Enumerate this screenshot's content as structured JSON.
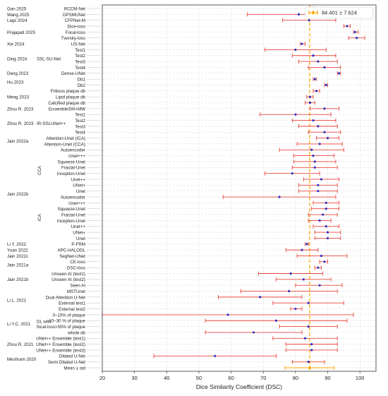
{
  "chart_data": {
    "type": "forest",
    "xlabel": "Dice Similarity Coefficient (DSC)",
    "xlim": [
      20,
      105
    ],
    "xticks": [
      20,
      30,
      40,
      50,
      60,
      70,
      80,
      90,
      100
    ],
    "grid": true,
    "legend": {
      "label": "84.401 ± 7.624",
      "position": "top-right"
    },
    "reference_line": {
      "value": 84.401,
      "color": "#ffa500",
      "style": "dashed"
    },
    "colors": {
      "error_bar": "#e8453c",
      "point": "#3030c0",
      "mean_marker": "#ffa500"
    },
    "rows": [
      {
        "label": "RCCM-Net",
        "mean": 85.0,
        "lo": 84.5,
        "hi": 85.5
      },
      {
        "label": "DPSMUNet",
        "mean": 81.0,
        "lo": 65.0,
        "hi": 97.0
      },
      {
        "label": "CFPNet-M",
        "mean": 84.2,
        "lo": 76.0,
        "hi": 92.5
      },
      {
        "label": "Dice-loss",
        "mean": 96.0,
        "lo": 95.0,
        "hi": 97.0
      },
      {
        "label": "Focal-loss",
        "mean": 98.5,
        "lo": 98.0,
        "hi": 99.5
      },
      {
        "label": "Tversky-loss",
        "mean": 99.0,
        "lo": 96.5,
        "hi": 101.5
      },
      {
        "label": "US-Net",
        "mean": 82.0,
        "lo": 81.5,
        "hi": 83.0
      },
      {
        "label": "Test1",
        "mean": 80.0,
        "lo": 70.5,
        "hi": 89.5
      },
      {
        "label": "Test2",
        "mean": 85.5,
        "lo": 79.0,
        "hi": 92.5
      },
      {
        "label": "Test3",
        "mean": 87.0,
        "lo": 81.0,
        "hi": 93.0
      },
      {
        "label": "Test4",
        "mean": 89.0,
        "lo": 84.0,
        "hi": 94.0
      },
      {
        "label": "Dense-UNet",
        "mean": 93.5,
        "lo": 93.0,
        "hi": 94.0
      },
      {
        "label": "Db1",
        "mean": 86.0,
        "lo": 85.5,
        "hi": 86.5
      },
      {
        "label": "Db2",
        "mean": 89.5,
        "lo": 89.0,
        "hi": 90.0
      },
      {
        "label": "Fribous plaque db",
        "mean": 86.5,
        "lo": 85.5,
        "hi": 87.5
      },
      {
        "label": "Lipid plaque db",
        "mean": 84.5,
        "lo": 83.5,
        "hi": 85.5
      },
      {
        "label": "Calcified plaque db",
        "mean": 84.5,
        "lo": 83.0,
        "hi": 86.0
      },
      {
        "label": "EnsembleSW+MW",
        "mean": 89.0,
        "lo": 84.5,
        "hi": 93.5
      },
      {
        "label": "Test1",
        "mean": 80.0,
        "lo": 69.0,
        "hi": 91.0
      },
      {
        "label": "Test2",
        "mean": 85.5,
        "lo": 79.0,
        "hi": 92.5
      },
      {
        "label": "Test3",
        "mean": 87.0,
        "lo": 81.0,
        "hi": 93.0
      },
      {
        "label": "Test4",
        "mean": 89.0,
        "lo": 84.0,
        "hi": 94.0
      },
      {
        "label": "Attention-Unet (ICA)",
        "mean": 90.0,
        "lo": 86.5,
        "hi": 93.5
      },
      {
        "label": "Attention-Unet (CCA)",
        "mean": 87.5,
        "lo": 80.5,
        "hi": 94.5
      },
      {
        "label": "Autoencoder",
        "mean": 85.0,
        "lo": 75.0,
        "hi": 95.0
      },
      {
        "label": "Unet+++",
        "mean": 85.5,
        "lo": 79.5,
        "hi": 92.0
      },
      {
        "label": "Squeeze-Unet",
        "mean": 86.0,
        "lo": 79.5,
        "hi": 92.5
      },
      {
        "label": "Fractal-Unet",
        "mean": 86.0,
        "lo": 79.0,
        "hi": 93.0
      },
      {
        "label": "Inception-Unet",
        "mean": 79.0,
        "lo": 70.5,
        "hi": 87.5
      },
      {
        "label": "Unet++",
        "mean": 88.0,
        "lo": 82.5,
        "hi": 93.5
      },
      {
        "label": "UNet+",
        "mean": 87.0,
        "lo": 81.0,
        "hi": 93.0
      },
      {
        "label": "Unet",
        "mean": 87.0,
        "lo": 81.0,
        "hi": 93.0
      },
      {
        "label": "Autoencoder",
        "mean": 75.0,
        "lo": 57.5,
        "hi": 92.5
      },
      {
        "label": "Unet+++",
        "mean": 89.5,
        "lo": 85.5,
        "hi": 93.5
      },
      {
        "label": "Squeeze-Unet",
        "mean": 89.5,
        "lo": 85.0,
        "hi": 93.5
      },
      {
        "label": "Fractal-Unet",
        "mean": 88.5,
        "lo": 84.0,
        "hi": 93.0
      },
      {
        "label": "Inception-Unet",
        "mean": 87.5,
        "lo": 84.0,
        "hi": 91.0
      },
      {
        "label": "Unet++",
        "mean": 89.5,
        "lo": 85.5,
        "hi": 93.5
      },
      {
        "label": "UNet+",
        "mean": 90.0,
        "lo": 86.0,
        "hi": 94.0
      },
      {
        "label": "Unet",
        "mean": 90.0,
        "lo": 86.0,
        "hi": 94.0
      },
      {
        "label": "P-FRM",
        "mean": 83.5,
        "lo": 83.0,
        "hi": 84.0
      },
      {
        "label": "APC-HALODL",
        "mean": 82.0,
        "lo": 77.0,
        "hi": 87.0
      },
      {
        "label": "SegNet-UNet",
        "mean": 88.0,
        "lo": 80.5,
        "hi": 96.0
      },
      {
        "label": "CE-loss",
        "mean": 89.0,
        "lo": 87.5,
        "hi": 90.0
      },
      {
        "label": "DSC-loss",
        "mean": 87.0,
        "lo": 86.0,
        "hi": 88.0
      },
      {
        "label": "Unseen AI (test1)",
        "mean": 78.5,
        "lo": 68.5,
        "hi": 88.5
      },
      {
        "label": "Unseen AI (test2)",
        "mean": 82.5,
        "lo": 74.0,
        "hi": 91.0
      },
      {
        "label": "Seen AI",
        "mean": 87.5,
        "lo": 80.0,
        "hi": 94.5
      },
      {
        "label": "MSTUnet",
        "mean": 78.0,
        "lo": 63.0,
        "hi": 93.0
      },
      {
        "label": "Dual Attention U-Net",
        "mean": 69.0,
        "lo": 56.0,
        "hi": 82.0
      },
      {
        "label": "External test1",
        "mean": 84.0,
        "lo": 73.0,
        "hi": 95.0
      },
      {
        "label": "External test2",
        "mean": 80.0,
        "lo": 78.5,
        "hi": 82.0
      },
      {
        "label": "0–10% of plaque",
        "mean": 59.0,
        "lo": 20.0,
        "hi": 98.0
      },
      {
        "label": "10–30 % of plaque",
        "mean": 74.0,
        "lo": 52.0,
        "hi": 96.0
      },
      {
        "label": ">30% of plaque",
        "mean": 84.0,
        "lo": 75.0,
        "hi": 93.0
      },
      {
        "label": "whole db",
        "mean": 67.0,
        "lo": 52.0,
        "hi": 82.0
      },
      {
        "label": "UNet++ Ensemble (test1)",
        "mean": 83.0,
        "lo": 73.0,
        "hi": 93.0
      },
      {
        "label": "UNet++ Ensemble (test2)",
        "mean": 85.0,
        "lo": 77.0,
        "hi": 93.0
      },
      {
        "label": "UNet++ Ensemble (test3)",
        "mean": 85.0,
        "lo": 77.0,
        "hi": 93.0
      },
      {
        "label": "Dilated U-Net",
        "mean": 55.0,
        "lo": 36.0,
        "hi": 74.0
      },
      {
        "label": "Semi Dilated U-Net",
        "mean": 84.0,
        "lo": 79.0,
        "hi": 89.0
      },
      {
        "label": "Mean ± std",
        "mean": 84.401,
        "lo": 76.777,
        "hi": 92.025,
        "summary": true
      }
    ],
    "groups": [
      {
        "label": "Gan 2025",
        "start": 0,
        "end": 0,
        "row_offset": 0
      },
      {
        "label": "Wang 2025",
        "start": 1,
        "end": 1,
        "row_offset": 0
      },
      {
        "label": "Liapi 2024",
        "start": 2,
        "end": 2,
        "row_offset": 0
      },
      {
        "label": "Prajapati 2025",
        "start": 3,
        "end": 5
      },
      {
        "label": "Xie 2024",
        "start": 6,
        "end": 6
      },
      {
        "label": "Ding 2024",
        "start": 7,
        "end": 10
      },
      {
        "label": "Deng 2023",
        "start": 11,
        "end": 11
      },
      {
        "label": "Hu 2023",
        "start": 12,
        "end": 13
      },
      {
        "label": "Meng 2023",
        "start": 14,
        "end": 16
      },
      {
        "label": "Zhou R. 2023",
        "start": 17,
        "end": 17
      },
      {
        "label": "Zhou R. 2023",
        "start": 18,
        "end": 21
      },
      {
        "label": "Jain 2022a",
        "start": 22,
        "end": 23
      },
      {
        "label": "Jain 2022b",
        "start": 24,
        "end": 39
      },
      {
        "label": "Li Y. 2022",
        "start": 40,
        "end": 40
      },
      {
        "label": "Yuan 2022",
        "start": 41,
        "end": 41
      },
      {
        "label": "Jain 2022c",
        "start": 42,
        "end": 42
      },
      {
        "label": "Jain 2021a",
        "start": 43,
        "end": 44
      },
      {
        "label": "Jain 2021b",
        "start": 45,
        "end": 47
      },
      {
        "label": "Li L. 2021",
        "start": 48,
        "end": 51
      },
      {
        "label": "Li Y.C. 2021",
        "start": 52,
        "end": 55
      },
      {
        "label": "Zhou R. 2021",
        "start": 56,
        "end": 58
      },
      {
        "label": "Meshram 2020",
        "start": 59,
        "end": 60
      }
    ],
    "subgroups": [
      {
        "label": "SSL-SU-Net",
        "start": 7,
        "end": 10
      },
      {
        "label": "IR-SSLUNet++",
        "start": 18,
        "end": 21
      },
      {
        "label": "CCA",
        "start": 24,
        "end": 31,
        "vertical": true
      },
      {
        "label": "ICA",
        "start": 32,
        "end": 39,
        "vertical": true
      },
      {
        "label": "DL with focal-loss",
        "start": 52,
        "end": 55,
        "multiline": [
          "DL with",
          "focal-loss"
        ]
      }
    ]
  }
}
